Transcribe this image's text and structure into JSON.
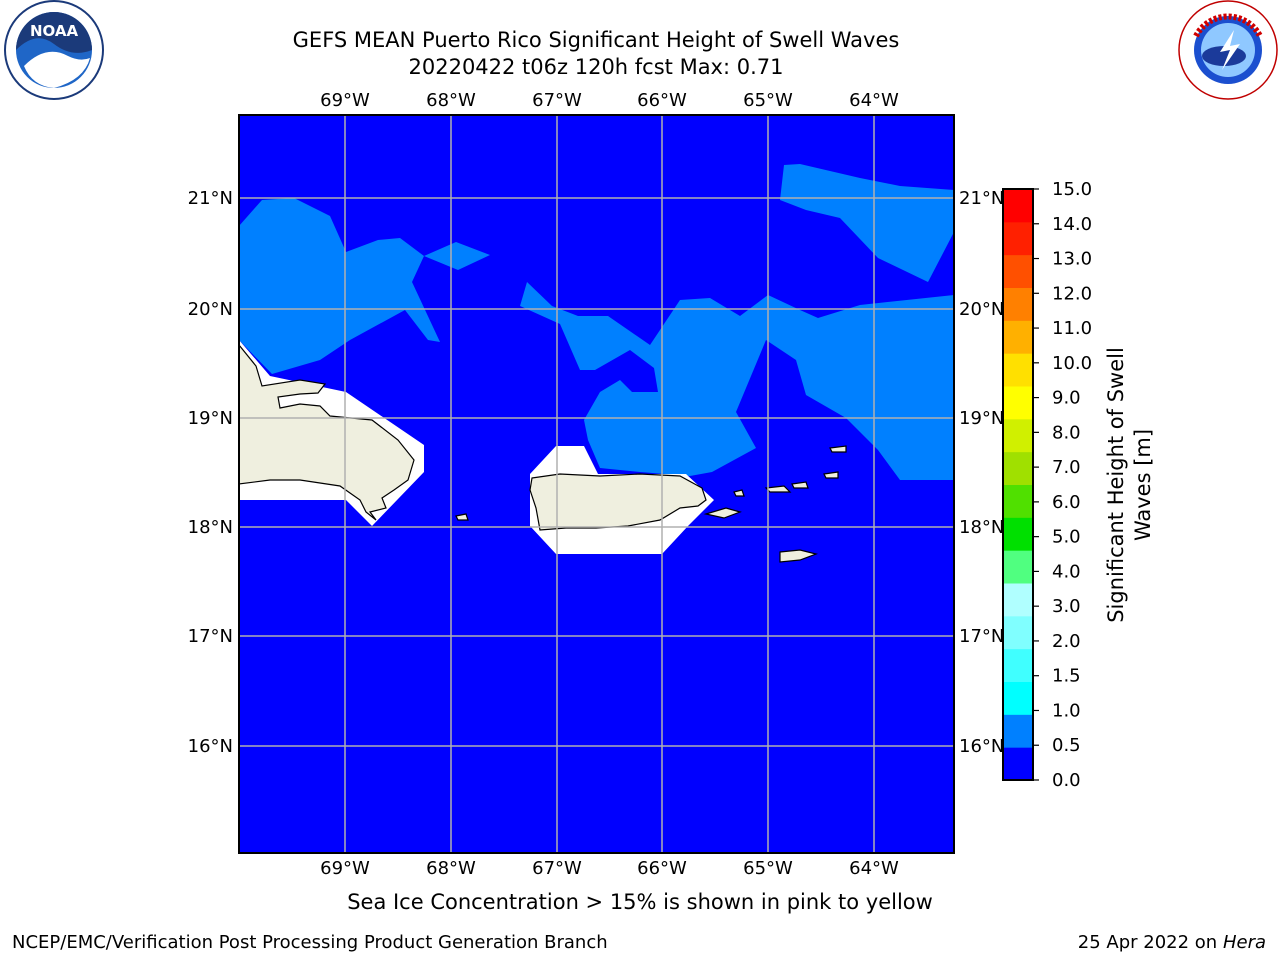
{
  "title_line1": "GEFS MEAN Puerto Rico Significant Height of Swell Waves",
  "title_line2": "20220422 t06z 120h fcst   Max: 0.71",
  "colorbar": {
    "label_line1": "Significant Height of Swell",
    "label_line2": "Waves [m]",
    "ticks": [
      "0.0",
      "0.5",
      "1.0",
      "1.5",
      "2.0",
      "3.0",
      "4.0",
      "5.0",
      "6.0",
      "7.0",
      "8.0",
      "9.0",
      "10.0",
      "11.0",
      "12.0",
      "13.0",
      "14.0",
      "15.0"
    ],
    "colors": [
      "#0000ff",
      "#0080ff",
      "#00ffff",
      "#40ffff",
      "#80ffff",
      "#b0ffff",
      "#50ff80",
      "#00e000",
      "#50e000",
      "#a0e000",
      "#d0f000",
      "#ffff00",
      "#ffe000",
      "#ffb000",
      "#ff8000",
      "#ff5000",
      "#ff2000",
      "#ff0000"
    ]
  },
  "axes": {
    "lon_labels": [
      "69°W",
      "68°W",
      "67°W",
      "66°W",
      "65°W",
      "64°W"
    ],
    "lat_labels": [
      "21°N",
      "20°N",
      "19°N",
      "18°N",
      "17°N",
      "16°N"
    ]
  },
  "map_colors": {
    "ocean_low": "#0000ff",
    "ocean_mid": "#0080ff",
    "land": "#efefdf",
    "mask": "#ffffff"
  },
  "note": "Sea Ice Concentration > 15% is shown in pink to yellow",
  "footer": {
    "left": "NCEP/EMC/Verification Post Processing Product Generation Branch",
    "date": "25 Apr 2022 on ",
    "machine": "Hera"
  },
  "logos": {
    "noaa": "NOAA",
    "nws": "NATIONAL WEATHER SERVICE"
  }
}
